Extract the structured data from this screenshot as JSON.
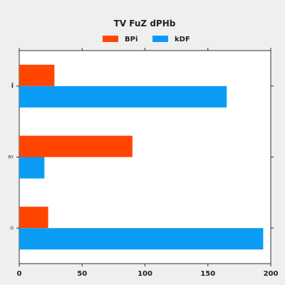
{
  "chart_data": {
    "type": "bar",
    "orientation": "horizontal",
    "title": "TV FuZ dPHb",
    "categories": [
      "G",
      "RY",
      "i"
    ],
    "series": [
      {
        "name": "BPi",
        "color": "#ff4500",
        "values": [
          23,
          90,
          28
        ]
      },
      {
        "name": "kDF",
        "color": "#0a9cf5",
        "values": [
          194,
          20,
          165
        ]
      }
    ],
    "xlim": [
      0,
      200
    ],
    "xticks": [
      0,
      50,
      100,
      150,
      200
    ],
    "grid": false,
    "legend_position": "top"
  }
}
